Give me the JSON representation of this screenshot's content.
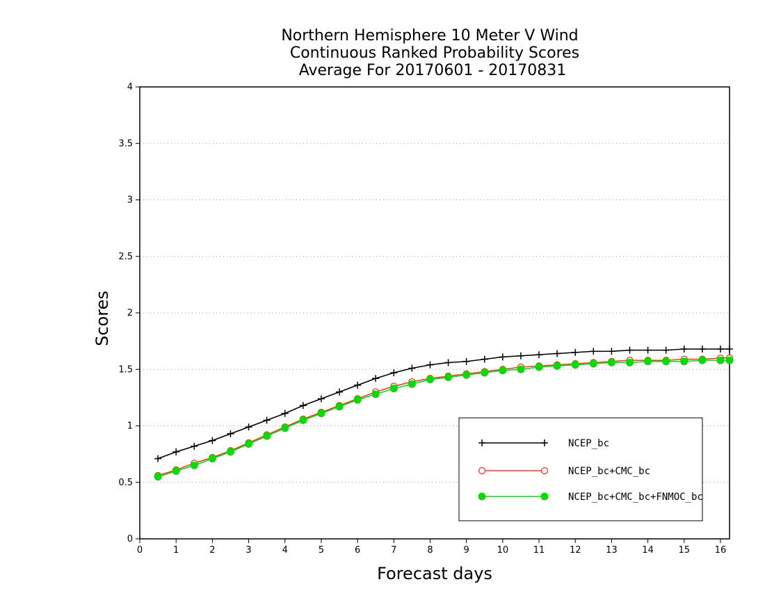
{
  "chart_data": {
    "type": "line",
    "title": [
      "Northern Hemisphere 10 Meter V Wind",
      "Continuous Ranked Probability Scores",
      "Average For 20170601 - 20170831"
    ],
    "xlabel": "Forecast days",
    "ylabel": "Scores",
    "xlim": [
      0,
      16.25
    ],
    "ylim": [
      0,
      4
    ],
    "xticks": [
      "0",
      "1",
      "2",
      "3",
      "4",
      "5",
      "6",
      "7",
      "8",
      "9",
      "10",
      "11",
      "12",
      "13",
      "14",
      "15",
      "16"
    ],
    "yticks": [
      "0",
      "0.5",
      "1",
      "1.5",
      "2",
      "2.5",
      "3",
      "3.5",
      "4"
    ],
    "grid": "horizontal dotted",
    "legend_position": "lower-right",
    "x": [
      0.5,
      1,
      1.5,
      2,
      2.5,
      3,
      3.5,
      4,
      4.5,
      5,
      5.5,
      6,
      6.5,
      7,
      7.5,
      8,
      8.5,
      9,
      9.5,
      10,
      10.5,
      11,
      11.5,
      12,
      12.5,
      13,
      13.5,
      14,
      14.5,
      15,
      15.5,
      16,
      16.25
    ],
    "series": [
      {
        "name": "NCEP_bc",
        "color": "#000000",
        "marker": "plus",
        "values": [
          0.71,
          0.77,
          0.82,
          0.87,
          0.93,
          0.99,
          1.05,
          1.11,
          1.18,
          1.24,
          1.3,
          1.36,
          1.42,
          1.47,
          1.51,
          1.54,
          1.56,
          1.57,
          1.59,
          1.61,
          1.62,
          1.63,
          1.64,
          1.65,
          1.66,
          1.66,
          1.67,
          1.67,
          1.67,
          1.68,
          1.68,
          1.68,
          1.68
        ]
      },
      {
        "name": "NCEP_bc+CMC_bc",
        "color": "#ff3030",
        "marker": "open-circle",
        "values": [
          0.56,
          0.61,
          0.67,
          0.72,
          0.78,
          0.85,
          0.92,
          0.99,
          1.06,
          1.12,
          1.18,
          1.24,
          1.3,
          1.35,
          1.39,
          1.42,
          1.44,
          1.46,
          1.48,
          1.5,
          1.52,
          1.53,
          1.54,
          1.55,
          1.56,
          1.57,
          1.58,
          1.58,
          1.58,
          1.59,
          1.59,
          1.6,
          1.6
        ]
      },
      {
        "name": "NCEP_bc+CMC_bc+FNMOC_bc",
        "color": "#00dd00",
        "marker": "filled-circle",
        "values": [
          0.55,
          0.6,
          0.65,
          0.71,
          0.77,
          0.84,
          0.91,
          0.98,
          1.05,
          1.11,
          1.17,
          1.23,
          1.28,
          1.33,
          1.37,
          1.41,
          1.43,
          1.45,
          1.47,
          1.49,
          1.5,
          1.52,
          1.53,
          1.54,
          1.55,
          1.56,
          1.56,
          1.57,
          1.57,
          1.57,
          1.58,
          1.58,
          1.58
        ]
      }
    ]
  }
}
